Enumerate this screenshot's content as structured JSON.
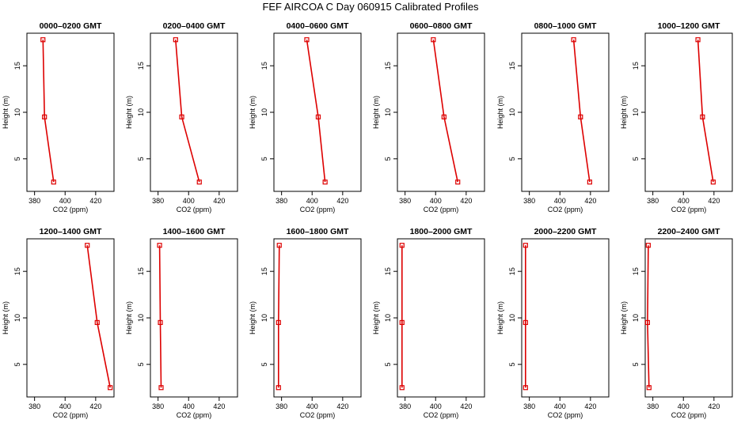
{
  "title": "FEF AIRCOA C  Day 060915  Calibrated Profiles",
  "chart_data": [
    {
      "type": "line",
      "title": "0000–0200 GMT",
      "xlabel": "CO2 (ppm)",
      "ylabel": "Height (m)",
      "xlim": [
        375,
        432
      ],
      "ylim": [
        1.5,
        18.5
      ],
      "xticks": [
        380,
        400,
        420
      ],
      "yticks": [
        5,
        10,
        15
      ],
      "x": [
        385.5,
        386.5,
        392.5
      ],
      "y": [
        17.8,
        9.5,
        2.5
      ]
    },
    {
      "type": "line",
      "title": "0200–0400 GMT",
      "xlabel": "CO2 (ppm)",
      "ylabel": "Height (m)",
      "xlim": [
        375,
        432
      ],
      "ylim": [
        1.5,
        18.5
      ],
      "xticks": [
        380,
        400,
        420
      ],
      "yticks": [
        5,
        10,
        15
      ],
      "x": [
        391.5,
        395.5,
        407.0
      ],
      "y": [
        17.8,
        9.5,
        2.5
      ]
    },
    {
      "type": "line",
      "title": "0400–0600 GMT",
      "xlabel": "CO2 (ppm)",
      "ylabel": "Height (m)",
      "xlim": [
        375,
        432
      ],
      "ylim": [
        1.5,
        18.5
      ],
      "xticks": [
        380,
        400,
        420
      ],
      "yticks": [
        5,
        10,
        15
      ],
      "x": [
        396.5,
        404.0,
        408.5
      ],
      "y": [
        17.8,
        9.5,
        2.5
      ]
    },
    {
      "type": "line",
      "title": "0600–0800 GMT",
      "xlabel": "CO2 (ppm)",
      "ylabel": "Height (m)",
      "xlim": [
        375,
        432
      ],
      "ylim": [
        1.5,
        18.5
      ],
      "xticks": [
        380,
        400,
        420
      ],
      "yticks": [
        5,
        10,
        15
      ],
      "x": [
        398.5,
        405.5,
        414.5
      ],
      "y": [
        17.8,
        9.5,
        2.5
      ]
    },
    {
      "type": "line",
      "title": "0800–1000 GMT",
      "xlabel": "CO2 (ppm)",
      "ylabel": "Height (m)",
      "xlim": [
        375,
        432
      ],
      "ylim": [
        1.5,
        18.5
      ],
      "xticks": [
        380,
        400,
        420
      ],
      "yticks": [
        5,
        10,
        15
      ],
      "x": [
        409.0,
        413.5,
        419.5
      ],
      "y": [
        17.8,
        9.5,
        2.5
      ]
    },
    {
      "type": "line",
      "title": "1000–1200 GMT",
      "xlabel": "CO2 (ppm)",
      "ylabel": "Height (m)",
      "xlim": [
        375,
        432
      ],
      "ylim": [
        1.5,
        18.5
      ],
      "xticks": [
        380,
        400,
        420
      ],
      "yticks": [
        5,
        10,
        15
      ],
      "x": [
        409.5,
        412.5,
        419.5
      ],
      "y": [
        17.8,
        9.5,
        2.5
      ]
    },
    {
      "type": "line",
      "title": "1200–1400 GMT",
      "xlabel": "CO2 (ppm)",
      "ylabel": "Height (m)",
      "xlim": [
        375,
        432
      ],
      "ylim": [
        1.5,
        18.5
      ],
      "xticks": [
        380,
        400,
        420
      ],
      "yticks": [
        5,
        10,
        15
      ],
      "x": [
        414.5,
        421.0,
        429.5
      ],
      "y": [
        17.8,
        9.5,
        2.5
      ]
    },
    {
      "type": "line",
      "title": "1400–1600 GMT",
      "xlabel": "CO2 (ppm)",
      "ylabel": "Height (m)",
      "xlim": [
        375,
        432
      ],
      "ylim": [
        1.5,
        18.5
      ],
      "xticks": [
        380,
        400,
        420
      ],
      "yticks": [
        5,
        10,
        15
      ],
      "x": [
        381.0,
        381.5,
        382.0
      ],
      "y": [
        17.8,
        9.5,
        2.5
      ]
    },
    {
      "type": "line",
      "title": "1600–1800 GMT",
      "xlabel": "CO2 (ppm)",
      "ylabel": "Height (m)",
      "xlim": [
        375,
        432
      ],
      "ylim": [
        1.5,
        18.5
      ],
      "xticks": [
        380,
        400,
        420
      ],
      "yticks": [
        5,
        10,
        15
      ],
      "x": [
        378.5,
        378.0,
        378.0
      ],
      "y": [
        17.8,
        9.5,
        2.5
      ]
    },
    {
      "type": "line",
      "title": "1800–2000 GMT",
      "xlabel": "CO2 (ppm)",
      "ylabel": "Height (m)",
      "xlim": [
        375,
        432
      ],
      "ylim": [
        1.5,
        18.5
      ],
      "xticks": [
        380,
        400,
        420
      ],
      "yticks": [
        5,
        10,
        15
      ],
      "x": [
        378.0,
        378.0,
        378.0
      ],
      "y": [
        17.8,
        9.5,
        2.5
      ]
    },
    {
      "type": "line",
      "title": "2000–2200 GMT",
      "xlabel": "CO2 (ppm)",
      "ylabel": "Height (m)",
      "xlim": [
        375,
        432
      ],
      "ylim": [
        1.5,
        18.5
      ],
      "xticks": [
        380,
        400,
        420
      ],
      "yticks": [
        5,
        10,
        15
      ],
      "x": [
        377.5,
        377.5,
        377.5
      ],
      "y": [
        17.8,
        9.5,
        2.5
      ]
    },
    {
      "type": "line",
      "title": "2200–2400 GMT",
      "xlabel": "CO2 (ppm)",
      "ylabel": "Height (m)",
      "xlim": [
        375,
        432
      ],
      "ylim": [
        1.5,
        18.5
      ],
      "xticks": [
        380,
        400,
        420
      ],
      "yticks": [
        5,
        10,
        15
      ],
      "x": [
        377.0,
        376.5,
        377.5
      ],
      "y": [
        17.8,
        9.5,
        2.5
      ]
    }
  ],
  "style": {
    "line_color": "#dd0000",
    "marker_color": "#dd0000",
    "axis_color": "#000000"
  }
}
